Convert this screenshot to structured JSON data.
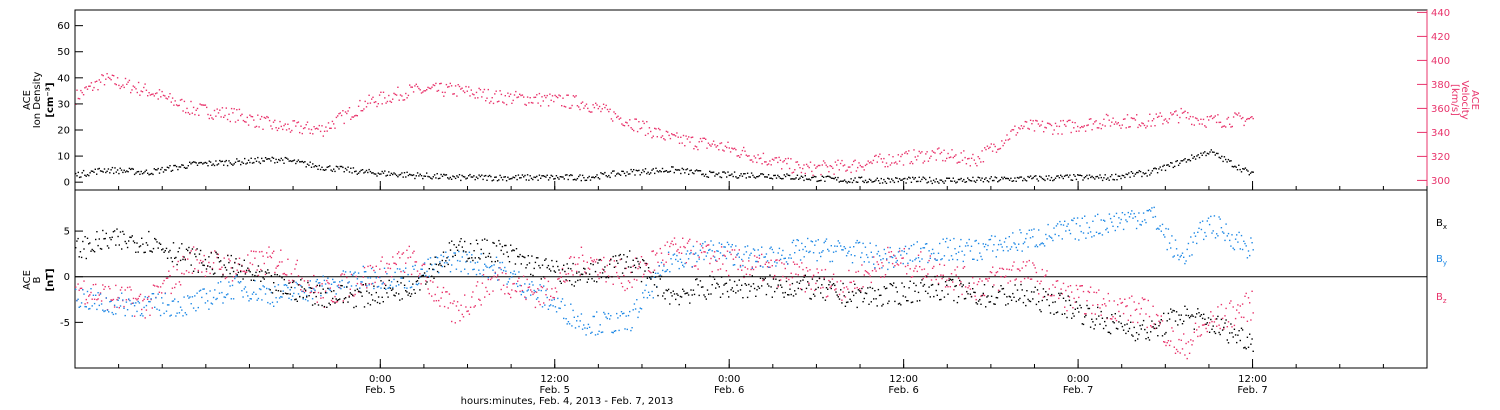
{
  "figure": {
    "xaxis_title": "hours:minutes, Feb.  4, 2013 - Feb.  7, 2013",
    "x_start": "2013-02-04 03:00",
    "x_end": "2013-02-08 00:00",
    "ticks": [
      {
        "t": "2013-02-05 00:00",
        "time": "0:00",
        "date": "Feb. 5"
      },
      {
        "t": "2013-02-05 12:00",
        "time": "12:00",
        "date": "Feb. 5"
      },
      {
        "t": "2013-02-06 00:00",
        "time": "0:00",
        "date": "Feb. 6"
      },
      {
        "t": "2013-02-06 12:00",
        "time": "12:00",
        "date": "Feb. 6"
      },
      {
        "t": "2013-02-07 00:00",
        "time": "0:00",
        "date": "Feb. 7"
      },
      {
        "t": "2013-02-07 12:00",
        "time": "12:00",
        "date": "Feb. 7"
      }
    ]
  },
  "colors": {
    "black": "#000000",
    "pink": "#e8336b",
    "blue": "#1e88e5"
  },
  "chart_data": [
    {
      "type": "scatter",
      "panel": "top",
      "ylabel_lines": [
        "ACE",
        "Ion Density",
        "[cm⁻³]"
      ],
      "ylim": [
        -3,
        66
      ],
      "yticks": [
        0,
        10,
        20,
        30,
        40,
        50,
        60
      ],
      "y2label_lines": [
        "ACE",
        "Velocity",
        "[km/s]"
      ],
      "y2lim": [
        292,
        442
      ],
      "y2ticks": [
        300,
        320,
        340,
        360,
        380,
        400,
        420,
        440
      ],
      "x": [
        "2013-02-04 03:00",
        "2013-02-04 05:00",
        "2013-02-04 08:00",
        "2013-02-04 11:00",
        "2013-02-04 14:00",
        "2013-02-04 17:00",
        "2013-02-04 20:00",
        "2013-02-04 23:00",
        "2013-02-05 02:00",
        "2013-02-05 05:00",
        "2013-02-05 08:00",
        "2013-02-05 11:00",
        "2013-02-05 14:00",
        "2013-02-05 17:00",
        "2013-02-05 20:00",
        "2013-02-05 23:00",
        "2013-02-06 02:00",
        "2013-02-06 05:00",
        "2013-02-06 08:00",
        "2013-02-06 11:00",
        "2013-02-06 14:00",
        "2013-02-06 17:00",
        "2013-02-06 20:00",
        "2013-02-06 23:00",
        "2013-02-07 02:00",
        "2013-02-07 05:00",
        "2013-02-07 07:00",
        "2013-02-07 09:00",
        "2013-02-07 12:00"
      ],
      "series": [
        {
          "name": "Ion Density",
          "axis": "left",
          "color": "black",
          "values": [
            3,
            5,
            4,
            7,
            8,
            9,
            6,
            4,
            3,
            2,
            2,
            2,
            2,
            4,
            5,
            3,
            3,
            2,
            1,
            1,
            1,
            1,
            1.5,
            2,
            2,
            4,
            8,
            12,
            3
          ]
        },
        {
          "name": "Velocity",
          "axis": "right",
          "color": "pink",
          "values": [
            370,
            385,
            375,
            360,
            355,
            345,
            343,
            365,
            375,
            376,
            370,
            368,
            365,
            350,
            335,
            330,
            320,
            310,
            312,
            318,
            322,
            318,
            345,
            345,
            350,
            350,
            355,
            350,
            352
          ]
        }
      ]
    },
    {
      "type": "scatter",
      "panel": "bottom",
      "ylabel_lines": [
        "ACE",
        "B",
        "[nT]"
      ],
      "ylim": [
        -10,
        9.5
      ],
      "yticks": [
        -5,
        0,
        5
      ],
      "series_labels": [
        {
          "text": "B",
          "sub": "x",
          "color": "black"
        },
        {
          "text": "B",
          "sub": "y",
          "color": "blue"
        },
        {
          "text": "B",
          "sub": "z",
          "color": "pink"
        }
      ],
      "x": [
        "2013-02-04 03:00",
        "2013-02-04 05:00",
        "2013-02-04 08:00",
        "2013-02-04 11:00",
        "2013-02-04 14:00",
        "2013-02-04 17:00",
        "2013-02-04 20:00",
        "2013-02-04 23:00",
        "2013-02-05 02:00",
        "2013-02-05 05:00",
        "2013-02-05 08:00",
        "2013-02-05 11:00",
        "2013-02-05 14:00",
        "2013-02-05 17:00",
        "2013-02-05 20:00",
        "2013-02-05 23:00",
        "2013-02-06 02:00",
        "2013-02-06 05:00",
        "2013-02-06 08:00",
        "2013-02-06 11:00",
        "2013-02-06 14:00",
        "2013-02-06 17:00",
        "2013-02-06 20:00",
        "2013-02-06 23:00",
        "2013-02-07 02:00",
        "2013-02-07 05:00",
        "2013-02-07 07:00",
        "2013-02-07 09:00",
        "2013-02-07 12:00"
      ],
      "series": [
        {
          "name": "Bx",
          "color": "black",
          "values": [
            3,
            4,
            4,
            2,
            1,
            -1,
            -2,
            -2,
            -1,
            3,
            3,
            1,
            0,
            2,
            -2,
            -1,
            -1,
            -1,
            -2,
            -2,
            -1,
            -2,
            -2,
            -3,
            -5,
            -6,
            -4,
            -5,
            -7
          ]
        },
        {
          "name": "By",
          "color": "blue",
          "values": [
            -2,
            -3,
            -3,
            -3,
            -1,
            -2,
            -1,
            0,
            0,
            2,
            1,
            -2,
            -5,
            -5,
            2,
            3,
            2,
            3,
            3,
            2,
            3,
            3,
            4,
            5,
            6,
            7,
            2,
            6,
            3
          ]
        },
        {
          "name": "Bz",
          "color": "pink",
          "values": [
            -1,
            -2,
            -3,
            2,
            1,
            2,
            -2,
            0,
            2,
            -4,
            0,
            -2,
            2,
            0,
            3,
            2,
            1,
            0,
            -1,
            2,
            1,
            -1,
            1,
            -2,
            -3,
            -4,
            -8,
            -5,
            -3
          ]
        }
      ]
    }
  ]
}
